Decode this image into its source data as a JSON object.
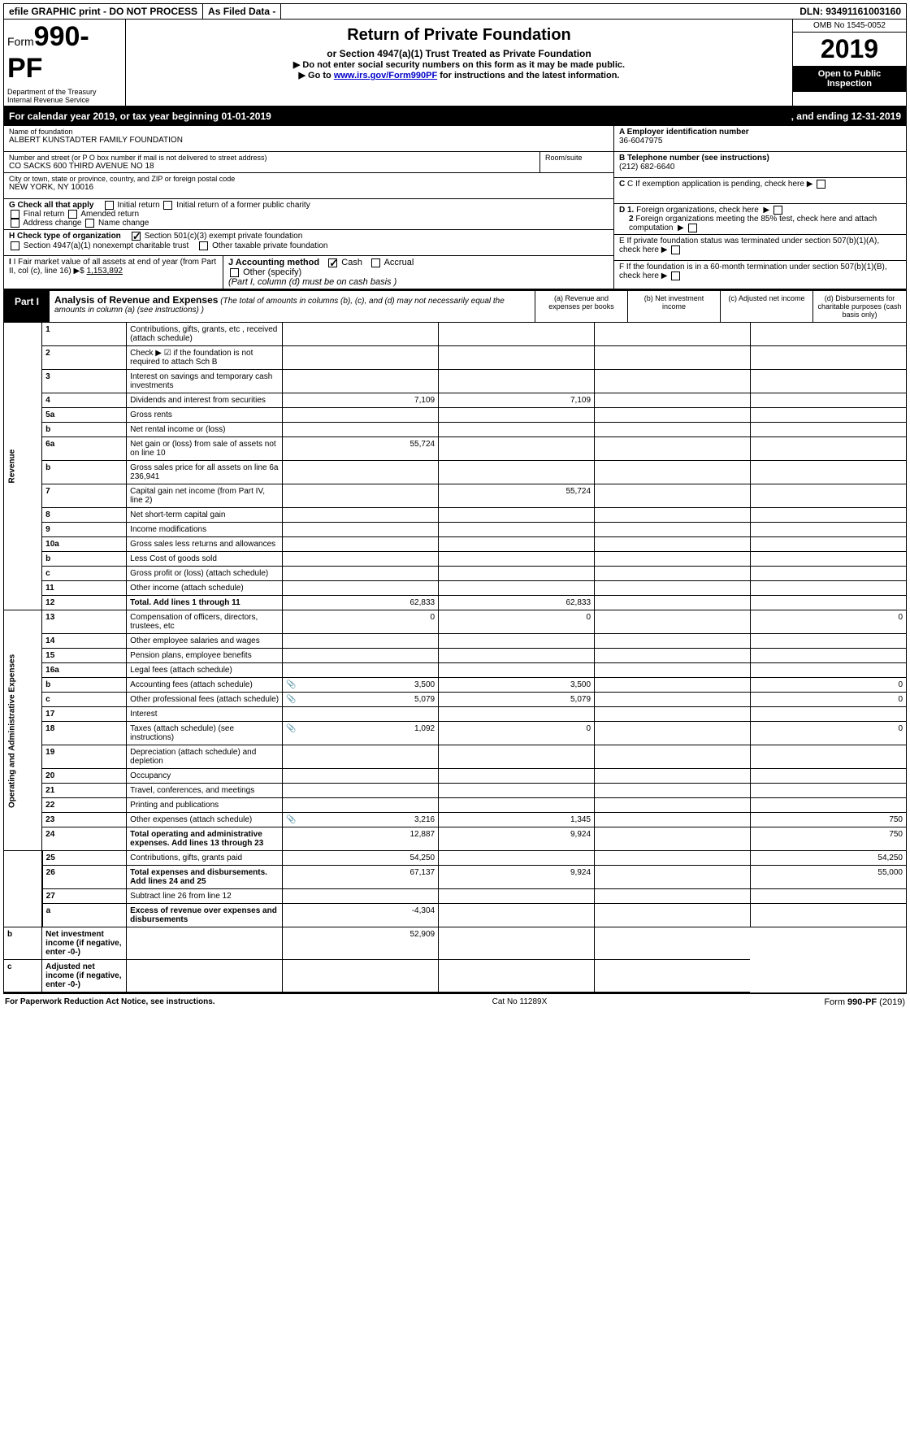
{
  "topbar": {
    "efile": "efile GRAPHIC print - DO NOT PROCESS",
    "asfiled": "As Filed Data -",
    "dln_label": "DLN:",
    "dln": "93491161003160"
  },
  "header": {
    "form_word": "Form",
    "form_no": "990-PF",
    "dept": "Department of the Treasury\nInternal Revenue Service",
    "title": "Return of Private Foundation",
    "subtitle": "or Section 4947(a)(1) Trust Treated as Private Foundation",
    "inst1": "▶ Do not enter social security numbers on this form as it may be made public.",
    "inst2_pre": "▶ Go to ",
    "inst2_link": "www.irs.gov/Form990PF",
    "inst2_post": " for instructions and the latest information.",
    "omb": "OMB No 1545-0052",
    "year": "2019",
    "open": "Open to Public Inspection"
  },
  "cal": {
    "left": "For calendar year 2019, or tax year beginning 01-01-2019",
    "right": ", and ending 12-31-2019"
  },
  "info": {
    "name_label": "Name of foundation",
    "name": "ALBERT KUNSTADTER FAMILY FOUNDATION",
    "addr_label": "Number and street (or P O  box number if mail is not delivered to street address)",
    "addr": "CO SACKS 600 THIRD AVENUE NO 18",
    "room_label": "Room/suite",
    "city_label": "City or town, state or province, country, and ZIP or foreign postal code",
    "city": "NEW YORK, NY  10016",
    "a_label": "A Employer identification number",
    "a_val": "36-6047975",
    "b_label": "B Telephone number (see instructions)",
    "b_val": "(212) 682-6640",
    "c_label": "C If exemption application is pending, check here",
    "g_label": "G Check all that apply",
    "g_opts": [
      "Initial return",
      "Initial return of a former public charity",
      "Final return",
      "Amended return",
      "Address change",
      "Name change"
    ],
    "h_label": "H Check type of organization",
    "h_opt1": "Section 501(c)(3) exempt private foundation",
    "h_opt2": "Section 4947(a)(1) nonexempt charitable trust",
    "h_opt3": "Other taxable private foundation",
    "i_label": "I Fair market value of all assets at end of year (from Part II, col  (c), line 16) ▶$ ",
    "i_val": "1,153,892",
    "j_label": "J Accounting method",
    "j_cash": "Cash",
    "j_accrual": "Accrual",
    "j_other": "Other (specify)",
    "j_note": "(Part I, column (d) must be on cash basis )",
    "d1": "D 1. Foreign organizations, check here",
    "d2": "2 Foreign organizations meeting the 85% test, check here and attach computation",
    "e": "E  If private foundation status was terminated under section 507(b)(1)(A), check here",
    "f": "F  If the foundation is in a 60-month termination under section 507(b)(1)(B), check here"
  },
  "part1": {
    "label": "Part I",
    "title": "Analysis of Revenue and Expenses",
    "note": " (The total of amounts in columns (b), (c), and (d) may not necessarily equal the amounts in column (a) (see instructions) )",
    "col_a": "(a) Revenue and expenses per books",
    "col_b": "(b) Net investment income",
    "col_c": "(c) Adjusted net income",
    "col_d": "(d) Disbursements for charitable purposes (cash basis only)"
  },
  "sidelabels": {
    "revenue": "Revenue",
    "expenses": "Operating and Administrative Expenses"
  },
  "rows": [
    {
      "n": "1",
      "d": "Contributions, gifts, grants, etc , received (attach schedule)",
      "a": "",
      "b": "",
      "c": "",
      "dd": ""
    },
    {
      "n": "2",
      "d": "Check ▶ ☑ if the foundation is not required to attach Sch  B",
      "a": "",
      "b": "",
      "c": "",
      "dd": ""
    },
    {
      "n": "3",
      "d": "Interest on savings and temporary cash investments",
      "a": "",
      "b": "",
      "c": "",
      "dd": ""
    },
    {
      "n": "4",
      "d": "Dividends and interest from securities",
      "a": "7,109",
      "b": "7,109",
      "c": "",
      "dd": ""
    },
    {
      "n": "5a",
      "d": "Gross rents",
      "a": "",
      "b": "",
      "c": "",
      "dd": ""
    },
    {
      "n": "b",
      "d": "Net rental income or (loss)",
      "a": "",
      "b": "",
      "c": "",
      "dd": ""
    },
    {
      "n": "6a",
      "d": "Net gain or (loss) from sale of assets not on line 10",
      "a": "55,724",
      "b": "",
      "c": "",
      "dd": ""
    },
    {
      "n": "b",
      "d": "Gross sales price for all assets on line 6a   236,941",
      "a": "",
      "b": "",
      "c": "",
      "dd": ""
    },
    {
      "n": "7",
      "d": "Capital gain net income (from Part IV, line 2)",
      "a": "",
      "b": "55,724",
      "c": "",
      "dd": ""
    },
    {
      "n": "8",
      "d": "Net short-term capital gain",
      "a": "",
      "b": "",
      "c": "",
      "dd": ""
    },
    {
      "n": "9",
      "d": "Income modifications",
      "a": "",
      "b": "",
      "c": "",
      "dd": ""
    },
    {
      "n": "10a",
      "d": "Gross sales less returns and allowances",
      "a": "",
      "b": "",
      "c": "",
      "dd": ""
    },
    {
      "n": "b",
      "d": "Less  Cost of goods sold",
      "a": "",
      "b": "",
      "c": "",
      "dd": ""
    },
    {
      "n": "c",
      "d": "Gross profit or (loss) (attach schedule)",
      "a": "",
      "b": "",
      "c": "",
      "dd": ""
    },
    {
      "n": "11",
      "d": "Other income (attach schedule)",
      "a": "",
      "b": "",
      "c": "",
      "dd": ""
    },
    {
      "n": "12",
      "d": "Total. Add lines 1 through 11",
      "a": "62,833",
      "b": "62,833",
      "c": "",
      "dd": "",
      "bold": true
    },
    {
      "n": "13",
      "d": "Compensation of officers, directors, trustees, etc",
      "a": "0",
      "b": "0",
      "c": "",
      "dd": "0"
    },
    {
      "n": "14",
      "d": "Other employee salaries and wages",
      "a": "",
      "b": "",
      "c": "",
      "dd": ""
    },
    {
      "n": "15",
      "d": "Pension plans, employee benefits",
      "a": "",
      "b": "",
      "c": "",
      "dd": ""
    },
    {
      "n": "16a",
      "d": "Legal fees (attach schedule)",
      "a": "",
      "b": "",
      "c": "",
      "dd": ""
    },
    {
      "n": "b",
      "d": "Accounting fees (attach schedule)",
      "a": "3,500",
      "b": "3,500",
      "c": "",
      "dd": "0",
      "icon": true
    },
    {
      "n": "c",
      "d": "Other professional fees (attach schedule)",
      "a": "5,079",
      "b": "5,079",
      "c": "",
      "dd": "0",
      "icon": true
    },
    {
      "n": "17",
      "d": "Interest",
      "a": "",
      "b": "",
      "c": "",
      "dd": ""
    },
    {
      "n": "18",
      "d": "Taxes (attach schedule) (see instructions)",
      "a": "1,092",
      "b": "0",
      "c": "",
      "dd": "0",
      "icon": true
    },
    {
      "n": "19",
      "d": "Depreciation (attach schedule) and depletion",
      "a": "",
      "b": "",
      "c": "",
      "dd": ""
    },
    {
      "n": "20",
      "d": "Occupancy",
      "a": "",
      "b": "",
      "c": "",
      "dd": ""
    },
    {
      "n": "21",
      "d": "Travel, conferences, and meetings",
      "a": "",
      "b": "",
      "c": "",
      "dd": ""
    },
    {
      "n": "22",
      "d": "Printing and publications",
      "a": "",
      "b": "",
      "c": "",
      "dd": ""
    },
    {
      "n": "23",
      "d": "Other expenses (attach schedule)",
      "a": "3,216",
      "b": "1,345",
      "c": "",
      "dd": "750",
      "icon": true
    },
    {
      "n": "24",
      "d": "Total operating and administrative expenses. Add lines 13 through 23",
      "a": "12,887",
      "b": "9,924",
      "c": "",
      "dd": "750",
      "bold": true
    },
    {
      "n": "25",
      "d": "Contributions, gifts, grants paid",
      "a": "54,250",
      "b": "",
      "c": "",
      "dd": "54,250"
    },
    {
      "n": "26",
      "d": "Total expenses and disbursements. Add lines 24 and 25",
      "a": "67,137",
      "b": "9,924",
      "c": "",
      "dd": "55,000",
      "bold": true
    },
    {
      "n": "27",
      "d": "Subtract line 26 from line 12",
      "a": "",
      "b": "",
      "c": "",
      "dd": ""
    },
    {
      "n": "a",
      "d": "Excess of revenue over expenses and disbursements",
      "a": "-4,304",
      "b": "",
      "c": "",
      "dd": "",
      "bold": true
    },
    {
      "n": "b",
      "d": "Net investment income (if negative, enter -0-)",
      "a": "",
      "b": "52,909",
      "c": "",
      "dd": "",
      "bold": true
    },
    {
      "n": "c",
      "d": "Adjusted net income (if negative, enter -0-)",
      "a": "",
      "b": "",
      "c": "",
      "dd": "",
      "bold": true
    }
  ],
  "grey": {
    "2": [
      "a",
      "b",
      "c",
      "dd"
    ],
    "b_5": [
      "a",
      "b",
      "c",
      "dd"
    ],
    "6a": [
      "b",
      "dd"
    ],
    "b_6": [
      "a",
      "b",
      "c",
      "dd"
    ],
    "7": [
      "a",
      "dd"
    ],
    "8": [
      "a",
      "dd"
    ],
    "9": [
      "a",
      "dd"
    ],
    "10a": [
      "a",
      "b",
      "c",
      "dd"
    ],
    "b_10": [
      "a",
      "b",
      "c",
      "dd"
    ],
    "19": [
      "dd"
    ],
    "25": [
      "b",
      "c"
    ],
    "27": [
      "a",
      "b",
      "c",
      "dd"
    ],
    "a_27": [
      "b",
      "c",
      "dd"
    ],
    "b_27": [
      "a",
      "c",
      "dd"
    ],
    "c_27": [
      "a",
      "b",
      "dd"
    ]
  },
  "footer": {
    "left": "For Paperwork Reduction Act Notice, see instructions.",
    "mid": "Cat  No  11289X",
    "right_pre": "Form ",
    "right_form": "990-PF",
    "right_post": " (2019)"
  }
}
